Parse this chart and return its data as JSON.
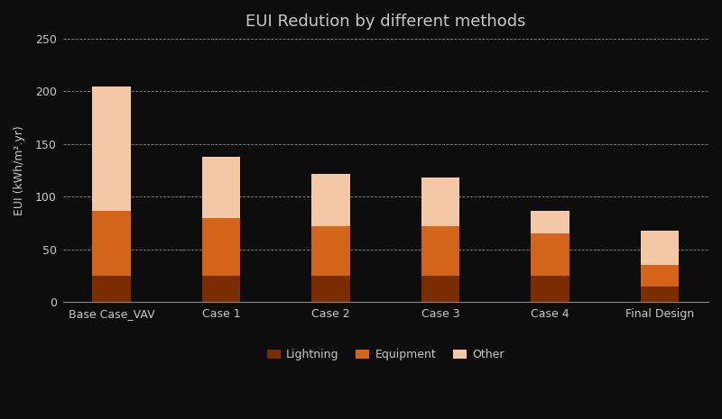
{
  "categories": [
    "Base Case_VAV",
    "Case 1",
    "Case 2",
    "Case 3",
    "Case 4",
    "Final Design"
  ],
  "lightning": [
    25,
    25,
    25,
    25,
    25,
    15
  ],
  "equipment": [
    62,
    55,
    47,
    47,
    40,
    20
  ],
  "other": [
    118,
    58,
    50,
    46,
    22,
    33
  ],
  "color_lightning": "#7B2D00",
  "color_equipment": "#D4641A",
  "color_other": "#F5C9A8",
  "title": "EUI Redution by different methods",
  "ylabel": "EUI (kWh/m².yr)",
  "ylim": [
    0,
    250
  ],
  "yticks": [
    0,
    50,
    100,
    150,
    200,
    250
  ],
  "legend_labels": [
    "Lightning",
    "Equipment",
    "Other"
  ],
  "background_color": "#0D0D0D",
  "axes_bg_color": "#0D0D0D",
  "text_color": "#C8C8C8",
  "grid_color": "#888888",
  "title_fontsize": 13,
  "tick_fontsize": 9,
  "legend_fontsize": 9,
  "bar_width": 0.35
}
